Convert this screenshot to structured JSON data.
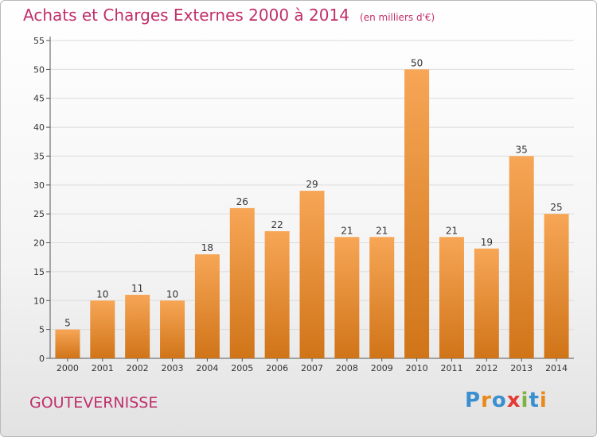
{
  "title": "Achats et Charges Externes 2000 à 2014",
  "unit": "(en milliers d'€)",
  "place": "GOUTEVERNISSE",
  "logo": {
    "letters": [
      "P",
      "r",
      "o",
      "x",
      "i",
      "t",
      "i"
    ],
    "colors": [
      "#3a8fd0",
      "#e8891a",
      "#3a8fd0",
      "#e53935",
      "#7cb342",
      "#3a8fd0",
      "#e8891a"
    ]
  },
  "colors": {
    "bar_top": "#f7a656",
    "bar_bottom": "#d07418",
    "title": "#c0306a"
  },
  "chart_data": {
    "type": "bar",
    "title": "Achats et Charges Externes 2000 à 2014",
    "categories": [
      "2000",
      "2001",
      "2002",
      "2003",
      "2004",
      "2005",
      "2006",
      "2007",
      "2008",
      "2009",
      "2010",
      "2011",
      "2012",
      "2013",
      "2014"
    ],
    "values": [
      5,
      10,
      11,
      10,
      18,
      26,
      22,
      29,
      21,
      21,
      50,
      21,
      19,
      35,
      25
    ],
    "ylim": [
      0,
      55
    ],
    "yticks": [
      0,
      5,
      10,
      15,
      20,
      25,
      30,
      35,
      40,
      45,
      50,
      55
    ],
    "grid": true,
    "data_labels": true
  }
}
